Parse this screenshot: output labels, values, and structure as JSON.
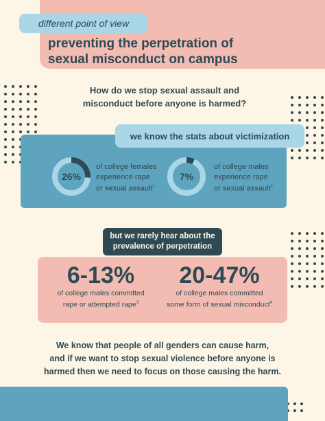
{
  "header": {
    "tag": "different point of view",
    "title_line1": "preventing the perpetration of",
    "title_line2": "sexual misconduct on campus"
  },
  "question": {
    "line1": "How do we stop sexual assault and",
    "line2": "misconduct before anyone is harmed?"
  },
  "victimization": {
    "heading": "we know the stats about victimization",
    "stats": [
      {
        "percent": "26%",
        "value": 26,
        "line1": "of college females",
        "line2": "experience rape",
        "line3": "or sexual assault",
        "note": "1"
      },
      {
        "percent": "7%",
        "value": 7,
        "line1": "of college males",
        "line2": "experience rape",
        "line3": "or sexual assault",
        "note": "2"
      }
    ]
  },
  "perpetration": {
    "heading_line1": "but we rarely hear about the",
    "heading_line2": "prevalence of perpetration",
    "stats": [
      {
        "range": "6-13%",
        "line1": "of college males committed",
        "line2": "rape or attempted rape",
        "note": "3"
      },
      {
        "range": "20-47%",
        "line1": "of college males committed",
        "line2": "some form of sexual misconduct",
        "note": "4"
      }
    ]
  },
  "closing": {
    "line1": "We know that people of all genders can cause harm,",
    "line2": "and if we want to stop sexual violence before anyone is",
    "line3": "harmed then we need to focus on those causing the harm."
  },
  "colors": {
    "dark_teal": "#2f4a55",
    "blue": "#5fa4bf",
    "light_blue": "#a9d7e7",
    "pink": "#f2bcb2",
    "cream": "#fdf6e6"
  }
}
